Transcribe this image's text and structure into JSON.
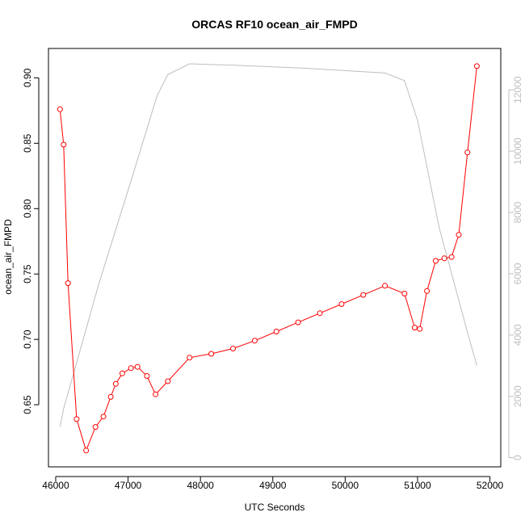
{
  "chart_data": {
    "type": "line",
    "title": "ORCAS RF10 ocean_air_FMPD",
    "xlabel": "UTC Seconds",
    "ylabel": "ocean_air_FMPD",
    "xlim": [
      45900,
      52150
    ],
    "ylim": [
      0.6025,
      0.9225
    ],
    "y2lim": [
      -300,
      13350
    ],
    "x_ticks": [
      46000,
      47000,
      48000,
      49000,
      50000,
      51000,
      52000
    ],
    "x_tick_labels": [
      "46000",
      "47000",
      "48000",
      "49000",
      "50000",
      "51000",
      "52000"
    ],
    "y_ticks": [
      0.65,
      0.7,
      0.75,
      0.8,
      0.85,
      0.9
    ],
    "y_tick_labels": [
      "0.65",
      "0.70",
      "0.75",
      "0.80",
      "0.85",
      "0.90"
    ],
    "y2_ticks": [
      0,
      2000,
      4000,
      6000,
      8000,
      10000,
      12000
    ],
    "y2_tick_labels": [
      "0",
      "2000",
      "4000",
      "6000",
      "8000",
      "10000",
      "12000"
    ],
    "grid": false,
    "series": [
      {
        "axis": "left",
        "color": "#ff0000",
        "marker": "open-circle",
        "x": [
          46060,
          46110,
          46170,
          46290,
          46420,
          46550,
          46660,
          46760,
          46830,
          46920,
          47040,
          47130,
          47260,
          47380,
          47550,
          47850,
          48150,
          48450,
          48750,
          49050,
          49350,
          49650,
          49950,
          50250,
          50550,
          50820,
          50960,
          51030,
          51130,
          51250,
          51370,
          51470,
          51570,
          51690,
          51820
        ],
        "values": [
          0.876,
          0.849,
          0.743,
          0.639,
          0.615,
          0.633,
          0.641,
          0.656,
          0.666,
          0.674,
          0.678,
          0.679,
          0.672,
          0.658,
          0.668,
          0.686,
          0.689,
          0.693,
          0.699,
          0.706,
          0.713,
          0.72,
          0.727,
          0.734,
          0.741,
          0.735,
          0.709,
          0.708,
          0.737,
          0.76,
          0.762,
          0.763,
          0.78,
          0.843,
          0.909
        ]
      },
      {
        "axis": "right",
        "color": "#bebebe",
        "marker": "none",
        "x": [
          46060,
          46110,
          46600,
          47050,
          47400,
          47550,
          47850,
          48500,
          49500,
          50550,
          50820,
          51000,
          51300,
          51700,
          51820
        ],
        "values": [
          1000,
          1600,
          5700,
          9100,
          11800,
          12500,
          12850,
          12800,
          12700,
          12550,
          12300,
          11000,
          7500,
          4000,
          3000
        ]
      }
    ]
  }
}
